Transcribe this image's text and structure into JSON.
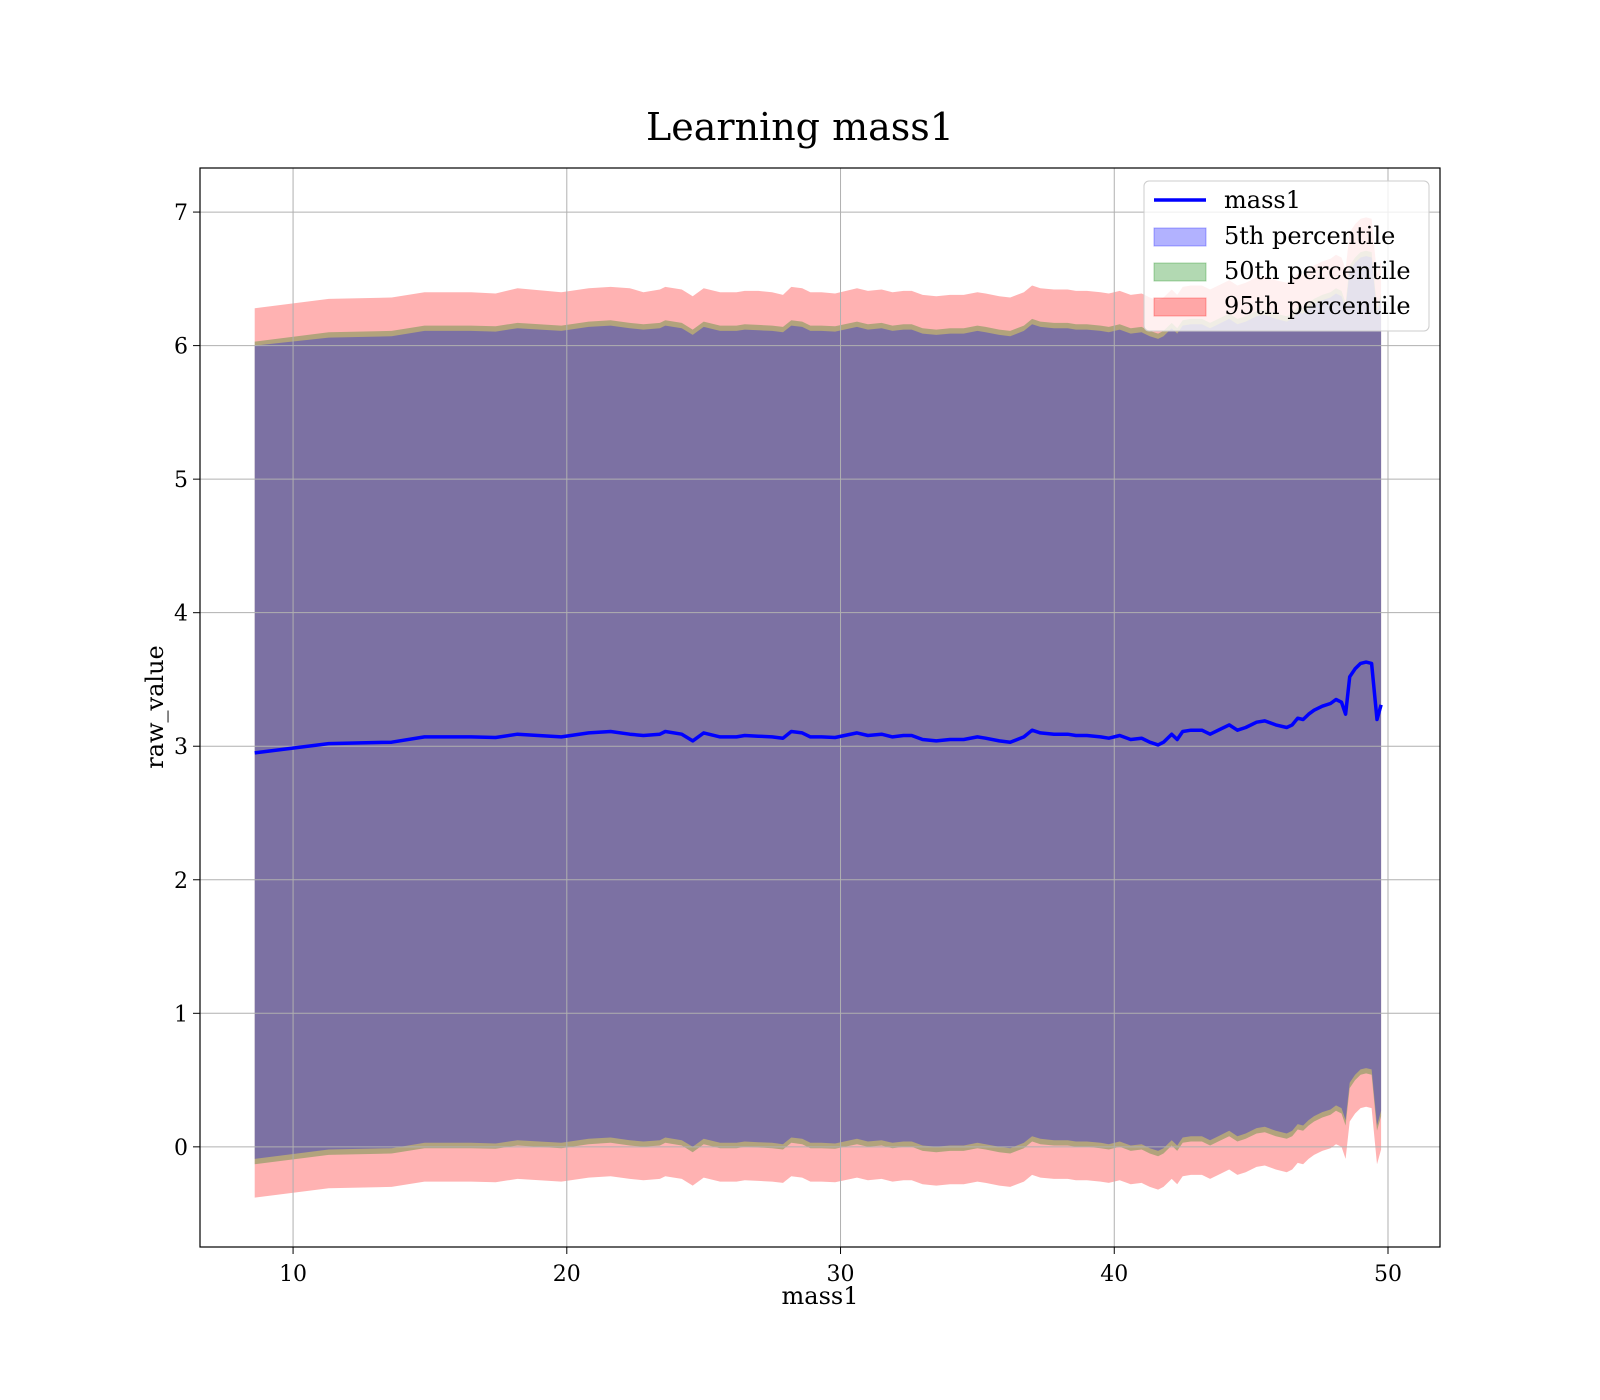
{
  "chart_data": {
    "type": "area",
    "title": "Learning mass1",
    "xlabel": "mass1",
    "ylabel": "raw_value",
    "xlim": [
      6.6,
      51.9
    ],
    "ylim": [
      -0.75,
      7.33
    ],
    "xticks": [
      10,
      20,
      30,
      40,
      50
    ],
    "yticks": [
      0,
      1,
      2,
      3,
      4,
      5,
      6,
      7
    ],
    "grid": true,
    "legend": {
      "position": "top-right",
      "entries": [
        "mass1",
        "5th percentile",
        "50th percentile",
        "95th percentile"
      ]
    },
    "colors": {
      "line": "#0000ff",
      "p5": "#0000ff",
      "p50": "#008000",
      "p95": "#ff0000"
    },
    "x": [
      8.6,
      11.3,
      13.6,
      14.8,
      16.5,
      17.4,
      18.2,
      19.8,
      20.8,
      21.6,
      22.3,
      22.8,
      23.4,
      23.6,
      24.2,
      24.6,
      25.0,
      25.6,
      26.2,
      26.5,
      27.0,
      27.5,
      27.9,
      28.2,
      28.6,
      28.9,
      29.3,
      29.8,
      30.6,
      31.0,
      31.5,
      31.9,
      32.3,
      32.6,
      33.0,
      33.5,
      34.0,
      34.5,
      35.0,
      35.3,
      35.8,
      36.2,
      36.7,
      37.0,
      37.3,
      37.8,
      38.3,
      38.6,
      39.0,
      39.5,
      39.8,
      40.2,
      40.6,
      41.0,
      41.3,
      41.6,
      41.8,
      42.1,
      42.3,
      42.5,
      42.8,
      43.2,
      43.5,
      43.8,
      44.2,
      44.5,
      44.8,
      45.2,
      45.5,
      45.9,
      46.3,
      46.5,
      46.7,
      46.9,
      47.1,
      47.3,
      47.6,
      47.9,
      48.1,
      48.3,
      48.45,
      48.6,
      48.8,
      49.0,
      49.2,
      49.4,
      49.6,
      49.75
    ],
    "series": [
      {
        "name": "mass1",
        "values": [
          2.95,
          3.02,
          3.03,
          3.07,
          3.07,
          3.065,
          3.09,
          3.07,
          3.1,
          3.11,
          3.09,
          3.08,
          3.09,
          3.11,
          3.09,
          3.04,
          3.1,
          3.07,
          3.07,
          3.08,
          3.075,
          3.07,
          3.06,
          3.11,
          3.1,
          3.07,
          3.07,
          3.065,
          3.1,
          3.08,
          3.09,
          3.07,
          3.08,
          3.08,
          3.05,
          3.04,
          3.05,
          3.05,
          3.07,
          3.06,
          3.04,
          3.03,
          3.07,
          3.12,
          3.1,
          3.09,
          3.09,
          3.08,
          3.08,
          3.07,
          3.06,
          3.08,
          3.05,
          3.06,
          3.03,
          3.01,
          3.03,
          3.09,
          3.05,
          3.11,
          3.12,
          3.12,
          3.09,
          3.12,
          3.16,
          3.12,
          3.14,
          3.18,
          3.19,
          3.16,
          3.14,
          3.16,
          3.21,
          3.2,
          3.24,
          3.27,
          3.3,
          3.32,
          3.35,
          3.33,
          3.24,
          3.52,
          3.58,
          3.62,
          3.63,
          3.62,
          3.2,
          3.31
        ]
      }
    ],
    "bands": [
      {
        "name": "95th percentile",
        "upper": [
          6.28,
          6.35,
          6.36,
          6.4,
          6.4,
          6.39,
          6.43,
          6.4,
          6.43,
          6.44,
          6.43,
          6.4,
          6.42,
          6.44,
          6.42,
          6.37,
          6.43,
          6.4,
          6.4,
          6.41,
          6.41,
          6.4,
          6.38,
          6.44,
          6.43,
          6.4,
          6.4,
          6.39,
          6.43,
          6.41,
          6.42,
          6.4,
          6.41,
          6.41,
          6.38,
          6.37,
          6.38,
          6.38,
          6.4,
          6.39,
          6.37,
          6.36,
          6.4,
          6.45,
          6.43,
          6.42,
          6.42,
          6.41,
          6.41,
          6.4,
          6.39,
          6.41,
          6.38,
          6.39,
          6.36,
          6.34,
          6.36,
          6.42,
          6.38,
          6.44,
          6.45,
          6.45,
          6.42,
          6.45,
          6.49,
          6.45,
          6.47,
          6.51,
          6.52,
          6.49,
          6.47,
          6.49,
          6.54,
          6.53,
          6.57,
          6.6,
          6.63,
          6.65,
          6.68,
          6.66,
          6.57,
          6.85,
          6.91,
          6.95,
          6.96,
          6.95,
          6.53,
          6.64
        ],
        "lower": [
          -0.38,
          -0.31,
          -0.3,
          -0.26,
          -0.26,
          -0.265,
          -0.24,
          -0.26,
          -0.23,
          -0.22,
          -0.24,
          -0.25,
          -0.24,
          -0.22,
          -0.24,
          -0.29,
          -0.23,
          -0.26,
          -0.26,
          -0.25,
          -0.255,
          -0.26,
          -0.27,
          -0.22,
          -0.23,
          -0.26,
          -0.26,
          -0.265,
          -0.23,
          -0.25,
          -0.24,
          -0.26,
          -0.25,
          -0.25,
          -0.28,
          -0.29,
          -0.28,
          -0.28,
          -0.26,
          -0.27,
          -0.29,
          -0.3,
          -0.26,
          -0.21,
          -0.23,
          -0.24,
          -0.24,
          -0.25,
          -0.25,
          -0.26,
          -0.27,
          -0.25,
          -0.28,
          -0.27,
          -0.3,
          -0.32,
          -0.3,
          -0.24,
          -0.28,
          -0.22,
          -0.21,
          -0.21,
          -0.24,
          -0.21,
          -0.17,
          -0.21,
          -0.19,
          -0.15,
          -0.14,
          -0.17,
          -0.19,
          -0.17,
          -0.12,
          -0.13,
          -0.09,
          -0.06,
          -0.03,
          -0.01,
          0.02,
          0.0,
          -0.09,
          0.19,
          0.25,
          0.29,
          0.3,
          0.29,
          -0.13,
          -0.02
        ]
      },
      {
        "name": "50th percentile",
        "upper": [
          6.03,
          6.1,
          6.11,
          6.15,
          6.15,
          6.145,
          6.17,
          6.15,
          6.18,
          6.19,
          6.17,
          6.16,
          6.17,
          6.19,
          6.17,
          6.12,
          6.18,
          6.15,
          6.15,
          6.16,
          6.155,
          6.15,
          6.14,
          6.19,
          6.18,
          6.15,
          6.15,
          6.145,
          6.18,
          6.16,
          6.17,
          6.15,
          6.16,
          6.16,
          6.13,
          6.12,
          6.13,
          6.13,
          6.15,
          6.14,
          6.12,
          6.11,
          6.15,
          6.2,
          6.18,
          6.17,
          6.17,
          6.16,
          6.16,
          6.15,
          6.14,
          6.16,
          6.13,
          6.14,
          6.11,
          6.09,
          6.11,
          6.17,
          6.13,
          6.19,
          6.2,
          6.2,
          6.17,
          6.2,
          6.24,
          6.2,
          6.22,
          6.26,
          6.27,
          6.24,
          6.22,
          6.24,
          6.29,
          6.28,
          6.32,
          6.35,
          6.38,
          6.4,
          6.43,
          6.41,
          6.32,
          6.6,
          6.66,
          6.7,
          6.71,
          6.7,
          6.28,
          6.39
        ],
        "lower": [
          -0.13,
          -0.06,
          -0.05,
          -0.01,
          -0.01,
          -0.015,
          0.01,
          -0.01,
          0.02,
          0.03,
          0.01,
          0.0,
          0.01,
          0.03,
          0.01,
          -0.04,
          0.02,
          -0.01,
          -0.01,
          0.0,
          -0.005,
          -0.01,
          -0.02,
          0.03,
          0.02,
          -0.01,
          -0.01,
          -0.015,
          0.02,
          0.0,
          0.01,
          -0.01,
          0.0,
          0.0,
          -0.03,
          -0.04,
          -0.03,
          -0.03,
          -0.01,
          -0.02,
          -0.04,
          -0.05,
          -0.01,
          0.04,
          0.02,
          0.01,
          0.01,
          0.0,
          0.0,
          -0.01,
          -0.02,
          0.0,
          -0.03,
          -0.02,
          -0.05,
          -0.07,
          -0.05,
          0.01,
          -0.03,
          0.03,
          0.04,
          0.04,
          0.01,
          0.04,
          0.08,
          0.04,
          0.06,
          0.1,
          0.11,
          0.08,
          0.06,
          0.08,
          0.13,
          0.12,
          0.16,
          0.19,
          0.22,
          0.24,
          0.27,
          0.25,
          0.16,
          0.44,
          0.5,
          0.54,
          0.55,
          0.54,
          0.12,
          0.23
        ]
      },
      {
        "name": "5th percentile",
        "upper": [
          6.0,
          6.06,
          6.07,
          6.11,
          6.11,
          6.105,
          6.13,
          6.11,
          6.14,
          6.15,
          6.13,
          6.12,
          6.13,
          6.15,
          6.13,
          6.08,
          6.14,
          6.11,
          6.11,
          6.12,
          6.115,
          6.11,
          6.1,
          6.15,
          6.14,
          6.11,
          6.11,
          6.105,
          6.14,
          6.12,
          6.13,
          6.11,
          6.12,
          6.12,
          6.09,
          6.08,
          6.09,
          6.09,
          6.11,
          6.1,
          6.08,
          6.07,
          6.11,
          6.16,
          6.14,
          6.13,
          6.13,
          6.12,
          6.12,
          6.11,
          6.1,
          6.12,
          6.09,
          6.1,
          6.07,
          6.05,
          6.07,
          6.13,
          6.09,
          6.15,
          6.16,
          6.16,
          6.13,
          6.16,
          6.2,
          6.16,
          6.18,
          6.22,
          6.23,
          6.2,
          6.18,
          6.2,
          6.25,
          6.24,
          6.28,
          6.31,
          6.34,
          6.36,
          6.39,
          6.37,
          6.28,
          6.56,
          6.62,
          6.66,
          6.67,
          6.66,
          6.24,
          6.35
        ],
        "lower": [
          -0.09,
          -0.02,
          -0.01,
          0.03,
          0.03,
          0.025,
          0.05,
          0.03,
          0.06,
          0.07,
          0.05,
          0.04,
          0.05,
          0.07,
          0.05,
          0.0,
          0.06,
          0.03,
          0.03,
          0.04,
          0.035,
          0.03,
          0.02,
          0.07,
          0.06,
          0.03,
          0.03,
          0.025,
          0.06,
          0.04,
          0.05,
          0.03,
          0.04,
          0.04,
          0.01,
          0.0,
          0.01,
          0.01,
          0.03,
          0.02,
          0.0,
          -0.01,
          0.03,
          0.08,
          0.06,
          0.05,
          0.05,
          0.04,
          0.04,
          0.03,
          0.02,
          0.04,
          0.01,
          0.02,
          -0.01,
          -0.03,
          -0.01,
          0.05,
          0.01,
          0.07,
          0.08,
          0.08,
          0.05,
          0.08,
          0.12,
          0.08,
          0.1,
          0.14,
          0.15,
          0.12,
          0.1,
          0.12,
          0.17,
          0.16,
          0.2,
          0.23,
          0.26,
          0.28,
          0.31,
          0.29,
          0.2,
          0.48,
          0.54,
          0.58,
          0.59,
          0.58,
          0.16,
          0.27
        ]
      }
    ]
  }
}
